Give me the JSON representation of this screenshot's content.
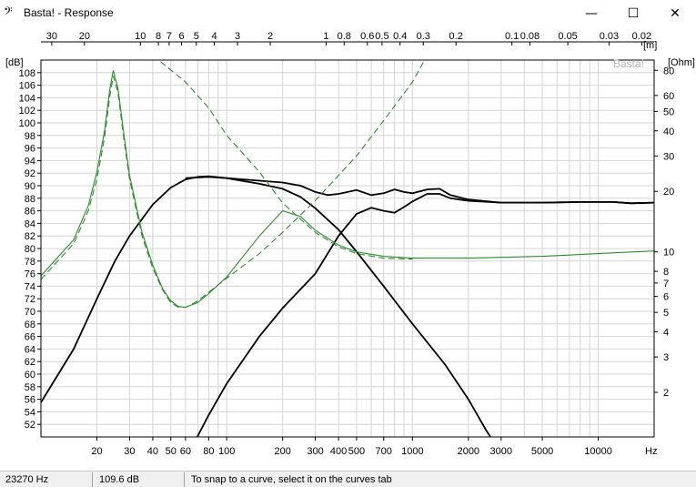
{
  "window": {
    "title": "Basta! - Response",
    "app_icon": "bass-clef-icon",
    "minimize_glyph": "—",
    "maximize_glyph": "☐",
    "close_glyph": "✕"
  },
  "status": {
    "frequency": "23270 Hz",
    "level": "109.6 dB",
    "message": "To snap to a curve, select it on the curves tab"
  },
  "colors": {
    "spl": "#000000",
    "impedance": "#2e8b2e",
    "grid": "#d4d4d4",
    "axis": "#000000"
  },
  "chart_data": {
    "type": "line",
    "watermark": "Basta!",
    "x_axis": {
      "scale": "log",
      "range": [
        10,
        20000
      ],
      "unit": "Hz",
      "ticks": [
        20,
        30,
        40,
        50,
        60,
        80,
        100,
        200,
        300,
        400,
        500,
        700,
        1000,
        2000,
        3000,
        5000,
        10000
      ]
    },
    "top_axis": {
      "unit": "[m]",
      "ticks": [
        30,
        20,
        10,
        8,
        7,
        6,
        5,
        4,
        3,
        2,
        1,
        0.8,
        0.6,
        0.5,
        0.4,
        0.3,
        0.2,
        0.1,
        0.08,
        0.05,
        0.03,
        0.02
      ],
      "tick_labels": [
        "30",
        "20",
        "10",
        "8",
        "7",
        "6",
        "5",
        "4",
        "3",
        "2",
        "1",
        "0.8",
        "0.6",
        "0.5",
        "0.4",
        "0.3",
        "0.2",
        "0.1",
        "0.08",
        "0.05",
        "0.03",
        "0.02"
      ]
    },
    "y_left": {
      "unit": "[dB]",
      "range": [
        50,
        110
      ],
      "ticks": [
        52,
        54,
        56,
        58,
        60,
        62,
        64,
        66,
        68,
        70,
        72,
        74,
        76,
        78,
        80,
        82,
        84,
        86,
        88,
        90,
        92,
        94,
        96,
        98,
        100,
        102,
        104,
        106,
        108
      ]
    },
    "y_right": {
      "unit": "[Ohm]",
      "scale": "log",
      "range": [
        1.2,
        90
      ],
      "ticks": [
        2,
        3,
        4,
        5,
        6,
        7,
        8,
        10,
        20,
        30,
        40,
        50,
        60,
        80
      ]
    },
    "grid": true,
    "series": [
      {
        "axis": "left",
        "style": "solid",
        "color": "#000000",
        "points": [
          [
            10,
            55.5
          ],
          [
            15,
            64
          ],
          [
            20,
            72
          ],
          [
            25,
            78
          ],
          [
            30,
            82
          ],
          [
            40,
            87
          ],
          [
            50,
            89.7
          ],
          [
            60,
            91
          ],
          [
            70,
            91.4
          ],
          [
            80,
            91.5
          ],
          [
            100,
            91.2
          ],
          [
            150,
            90.3
          ],
          [
            200,
            89.5
          ],
          [
            250,
            88.2
          ],
          [
            300,
            86.4
          ],
          [
            400,
            83
          ],
          [
            500,
            79.5
          ],
          [
            700,
            74
          ],
          [
            1000,
            68
          ],
          [
            1500,
            61.5
          ],
          [
            2000,
            56
          ],
          [
            2500,
            51
          ],
          [
            2700,
            49.5
          ]
        ]
      },
      {
        "axis": "left",
        "style": "solid",
        "color": "#000000",
        "points": [
          [
            68,
            49.5
          ],
          [
            80,
            53.5
          ],
          [
            100,
            58.5
          ],
          [
            150,
            66
          ],
          [
            200,
            70.5
          ],
          [
            300,
            76
          ],
          [
            400,
            82
          ],
          [
            500,
            85.5
          ],
          [
            600,
            86.5
          ],
          [
            700,
            86
          ],
          [
            800,
            85.7
          ],
          [
            900,
            86.6
          ],
          [
            1000,
            87.5
          ],
          [
            1200,
            88.7
          ],
          [
            1400,
            88.7
          ],
          [
            1600,
            88
          ],
          [
            2000,
            87.6
          ],
          [
            3000,
            87.3
          ],
          [
            5000,
            87.3
          ],
          [
            8000,
            87.4
          ],
          [
            12000,
            87.4
          ],
          [
            15000,
            87.2
          ],
          [
            20000,
            87.3
          ]
        ]
      },
      {
        "axis": "left",
        "style": "solid",
        "color": "#000000",
        "points": [
          [
            60,
            91.2
          ],
          [
            80,
            91.4
          ],
          [
            100,
            91.2
          ],
          [
            150,
            90.8
          ],
          [
            200,
            90.5
          ],
          [
            250,
            90
          ],
          [
            300,
            89
          ],
          [
            350,
            88.5
          ],
          [
            400,
            88.7
          ],
          [
            500,
            89.3
          ],
          [
            600,
            88.5
          ],
          [
            700,
            88.8
          ],
          [
            800,
            89.4
          ],
          [
            900,
            89
          ],
          [
            1000,
            88.8
          ],
          [
            1200,
            89.4
          ],
          [
            1400,
            89.5
          ],
          [
            1600,
            88.5
          ],
          [
            2000,
            87.8
          ],
          [
            3000,
            87.3
          ],
          [
            5000,
            87.3
          ],
          [
            8000,
            87.4
          ],
          [
            12000,
            87.4
          ],
          [
            15000,
            87.2
          ],
          [
            20000,
            87.3
          ]
        ]
      },
      {
        "axis": "right",
        "style": "solid",
        "color": "#2e8b2e",
        "points": [
          [
            10,
            7.6
          ],
          [
            15,
            11.5
          ],
          [
            18,
            17
          ],
          [
            20,
            25
          ],
          [
            22,
            40
          ],
          [
            23.5,
            65
          ],
          [
            24.5,
            80
          ],
          [
            26,
            65
          ],
          [
            28,
            38
          ],
          [
            30,
            24
          ],
          [
            35,
            12.5
          ],
          [
            40,
            8.6
          ],
          [
            45,
            6.6
          ],
          [
            50,
            5.7
          ],
          [
            55,
            5.35
          ],
          [
            60,
            5.3
          ],
          [
            70,
            5.6
          ],
          [
            80,
            6.2
          ],
          [
            100,
            7.5
          ],
          [
            150,
            12
          ],
          [
            200,
            16
          ],
          [
            250,
            15
          ],
          [
            300,
            12.8
          ],
          [
            400,
            10.8
          ],
          [
            500,
            10
          ],
          [
            700,
            9.5
          ],
          [
            1000,
            9.3
          ],
          [
            2000,
            9.3
          ],
          [
            5000,
            9.5
          ],
          [
            10000,
            9.8
          ],
          [
            20000,
            10.1
          ]
        ]
      },
      {
        "axis": "right",
        "style": "dashed",
        "color": "#2e8b2e",
        "points": [
          [
            10,
            7.3
          ],
          [
            15,
            11
          ],
          [
            18,
            16
          ],
          [
            20,
            23
          ],
          [
            22,
            37
          ],
          [
            23.5,
            60
          ],
          [
            24.5,
            75
          ],
          [
            26,
            62
          ],
          [
            28,
            36
          ],
          [
            30,
            23
          ],
          [
            35,
            12
          ],
          [
            40,
            8.3
          ],
          [
            45,
            6.5
          ],
          [
            50,
            5.6
          ],
          [
            55,
            5.3
          ],
          [
            60,
            5.3
          ],
          [
            70,
            5.7
          ],
          [
            80,
            6.3
          ]
        ]
      },
      {
        "axis": "right",
        "style": "dashed",
        "color": "#2e8b2e",
        "points": [
          [
            80,
            6.3
          ],
          [
            100,
            7.4
          ],
          [
            150,
            9.8
          ],
          [
            200,
            12.5
          ],
          [
            300,
            18
          ],
          [
            500,
            30
          ],
          [
            700,
            45
          ],
          [
            1000,
            70
          ],
          [
            1200,
            95
          ]
        ]
      },
      {
        "axis": "right",
        "style": "dashed",
        "color": "#2e8b2e",
        "points": [
          [
            40,
            95
          ],
          [
            60,
            70
          ],
          [
            80,
            52
          ],
          [
            100,
            38
          ],
          [
            150,
            25
          ],
          [
            200,
            17.5
          ],
          [
            300,
            12.5
          ],
          [
            400,
            10.6
          ],
          [
            500,
            9.8
          ],
          [
            700,
            9.3
          ],
          [
            1000,
            9.2
          ]
        ]
      }
    ]
  }
}
